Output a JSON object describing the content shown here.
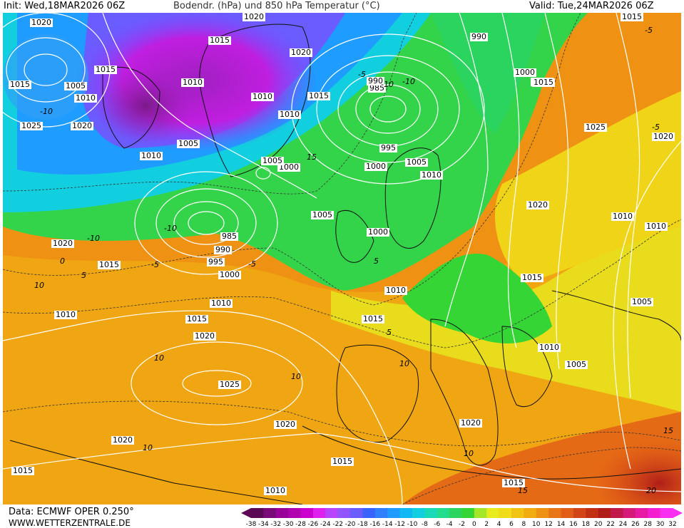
{
  "header": {
    "init": "Init: Wed,18MAR2026 06Z",
    "title": "Bodendr. (hPa) und 850 hPa Temperatur (°C)",
    "valid": "Valid: Tue,24MAR2026 06Z"
  },
  "footer": {
    "data_source": "Data: ECMWF OPER 0.250°",
    "website": "WWW.WETTERZENTRALE.DE"
  },
  "pressure_labels": [
    "1020",
    "1015",
    "1020",
    "1015",
    "1005",
    "1010",
    "1025",
    "1020",
    "1010",
    "1015",
    "1010",
    "1005",
    "1015",
    "1010",
    "1020",
    "1010",
    "1010",
    "1015",
    "990",
    "985",
    "990",
    "1000",
    "1015",
    "1025",
    "1020",
    "995",
    "1005",
    "1010",
    "1000",
    "1000",
    "1005",
    "985",
    "990",
    "995",
    "1000",
    "1000",
    "1010",
    "1010",
    "1020",
    "1015",
    "1010",
    "1010",
    "1020",
    "1015",
    "1010",
    "1005",
    "1010",
    "1015",
    "1020",
    "1025",
    "1020",
    "1015",
    "1010",
    "1005",
    "1010",
    "1020",
    "1015",
    "1015",
    "1020",
    "1015",
    "1005",
    "1010"
  ],
  "temperature_labels": [
    "-10",
    "-10",
    "-10",
    "-10",
    "-5",
    "-10",
    "-5",
    "-5",
    "-5",
    "-5",
    "0",
    "5",
    "5",
    "10",
    "10",
    "10",
    "10",
    "10",
    "5",
    "10",
    "15",
    "15",
    "15",
    "20"
  ],
  "color_scale": {
    "ticks": [
      "-38",
      "-34",
      "-32",
      "-30",
      "-28",
      "-26",
      "-24",
      "-22",
      "-20",
      "-18",
      "-16",
      "-14",
      "-12",
      "-10",
      "-8",
      "-6",
      "-4",
      "-2",
      "0",
      "2",
      "4",
      "6",
      "8",
      "10",
      "12",
      "14",
      "16",
      "18",
      "20",
      "22",
      "24",
      "26",
      "28",
      "30",
      "32"
    ],
    "colors": [
      "#5a0a55",
      "#7a0a78",
      "#990099",
      "#b000b0",
      "#cc00cc",
      "#dd22ee",
      "#b844ff",
      "#9055ff",
      "#6a5cff",
      "#3a62ff",
      "#2f7fff",
      "#1e9cff",
      "#10b8f5",
      "#12cfe0",
      "#19d9b8",
      "#22dd8c",
      "#2ad45e",
      "#34d534",
      "#a6e62a",
      "#e6ec1e",
      "#f0dc18",
      "#f1c414",
      "#f1ac12",
      "#ef9214",
      "#e87616",
      "#e05e18",
      "#d34418",
      "#c23014",
      "#b01e18",
      "#c01848",
      "#d51a78",
      "#e61aa4",
      "#f21ed0",
      "#fa2ef0"
    ]
  }
}
